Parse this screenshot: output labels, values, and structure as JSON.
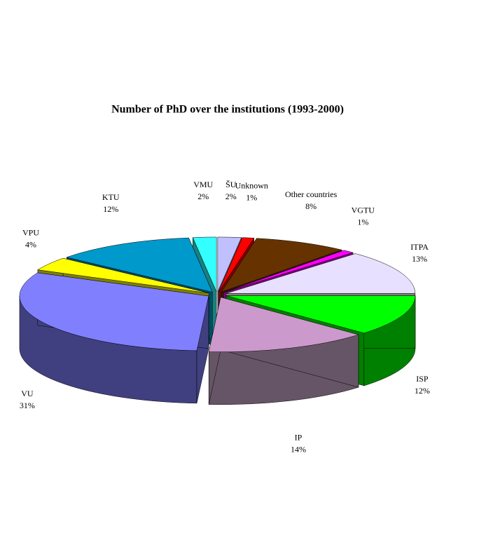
{
  "chart_data": {
    "type": "pie3d",
    "title": "Number of PhD over the institutions (1993-2000)",
    "categories": [
      "ŠU",
      "Unknown",
      "Other countries",
      "VGTU",
      "ITPA",
      "ISP",
      "IP",
      "VU",
      "VPU",
      "KTU",
      "VMU"
    ],
    "values": [
      2,
      1,
      8,
      1,
      13,
      12,
      14,
      31,
      4,
      12,
      2
    ],
    "value_labels": [
      "2%",
      "1%",
      "8%",
      "1%",
      "13%",
      "12%",
      "14%",
      "31%",
      "4%",
      "12%",
      "2%"
    ],
    "colors": [
      "#c0c0ff",
      "#ff0000",
      "#663300",
      "#ff00ff",
      "#e8e0ff",
      "#00ff00",
      "#cc99cc",
      "#8080ff",
      "#ffff00",
      "#0099cc",
      "#33ffff"
    ],
    "side_colors": [
      "#606080",
      "#800000",
      "#331a00",
      "#800080",
      "#808080",
      "#008000",
      "#665566",
      "#404080",
      "#808000",
      "#004d66",
      "#1a8080"
    ]
  }
}
